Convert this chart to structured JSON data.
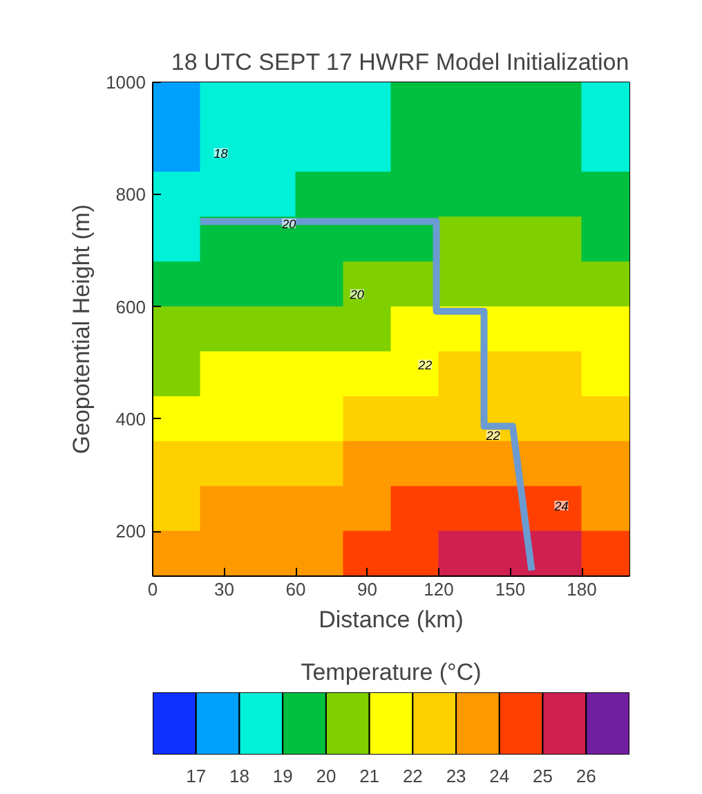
{
  "chart_data": {
    "type": "heatmap",
    "title": "18 UTC SEPT 17 HWRF Model Initialization",
    "xlabel": "Distance (km)",
    "ylabel": "Geopotential Height (m)",
    "clabel": "Temperature (°C)",
    "xlim": [
      0,
      200
    ],
    "ylim": [
      120,
      1000
    ],
    "xticks": [
      0,
      30,
      60,
      90,
      120,
      150,
      180
    ],
    "yticks": [
      200,
      400,
      600,
      800,
      1000
    ],
    "x": [
      10,
      30,
      50,
      70,
      90,
      110,
      130,
      150,
      170,
      190
    ],
    "cells": [
      [
        17.5,
        18.5,
        18.5,
        18.5,
        18.5,
        19.5,
        19.5,
        19.5,
        19.5,
        18.5
      ],
      [
        17.5,
        18.5,
        18.5,
        18.5,
        18.5,
        19.5,
        19.5,
        19.5,
        19.5,
        18.5
      ],
      [
        18.5,
        18.5,
        18.5,
        19.5,
        19.5,
        19.5,
        19.5,
        19.5,
        19.5,
        19.5
      ],
      [
        18.5,
        19.5,
        19.5,
        19.5,
        19.5,
        19.5,
        20.5,
        20.5,
        20.5,
        19.5
      ],
      [
        19.5,
        19.5,
        19.5,
        19.5,
        20.5,
        20.5,
        20.5,
        20.5,
        20.5,
        20.5
      ],
      [
        20.5,
        20.5,
        20.5,
        20.5,
        20.5,
        21.5,
        21.5,
        21.5,
        21.5,
        21.5
      ],
      [
        20.5,
        21.5,
        21.5,
        21.5,
        21.5,
        21.5,
        22.5,
        22.5,
        22.5,
        21.5
      ],
      [
        21.5,
        21.5,
        21.5,
        21.5,
        22.5,
        22.5,
        22.5,
        22.5,
        22.5,
        22.5
      ],
      [
        22.5,
        22.5,
        22.5,
        22.5,
        23.5,
        23.5,
        23.5,
        23.5,
        23.5,
        23.5
      ],
      [
        22.5,
        23.5,
        23.5,
        23.5,
        23.5,
        24.5,
        24.5,
        24.5,
        24.5,
        23.5
      ],
      [
        23.5,
        23.5,
        23.5,
        23.5,
        24.5,
        24.5,
        25.5,
        25.5,
        25.5,
        24.5
      ]
    ],
    "clim": [
      16,
      27
    ],
    "cticks": [
      17,
      18,
      19,
      20,
      21,
      22,
      23,
      24,
      25,
      26
    ],
    "colors": [
      "#1030ff",
      "#00a0ff",
      "#00f0d8",
      "#00c040",
      "#80d000",
      "#ffff00",
      "#ffd000",
      "#ff9900",
      "#ff4000",
      "#d02050",
      "#7020a0"
    ],
    "series": [
      {
        "type": "line",
        "color": "#6b9bd1",
        "x": [
          20,
          119,
          119,
          139,
          139,
          151,
          159
        ],
        "values": [
          752,
          752,
          592,
          592,
          387,
          387,
          130
        ]
      }
    ],
    "annotations": [
      "18",
      "20",
      "20",
      "22",
      "22",
      "24"
    ]
  }
}
